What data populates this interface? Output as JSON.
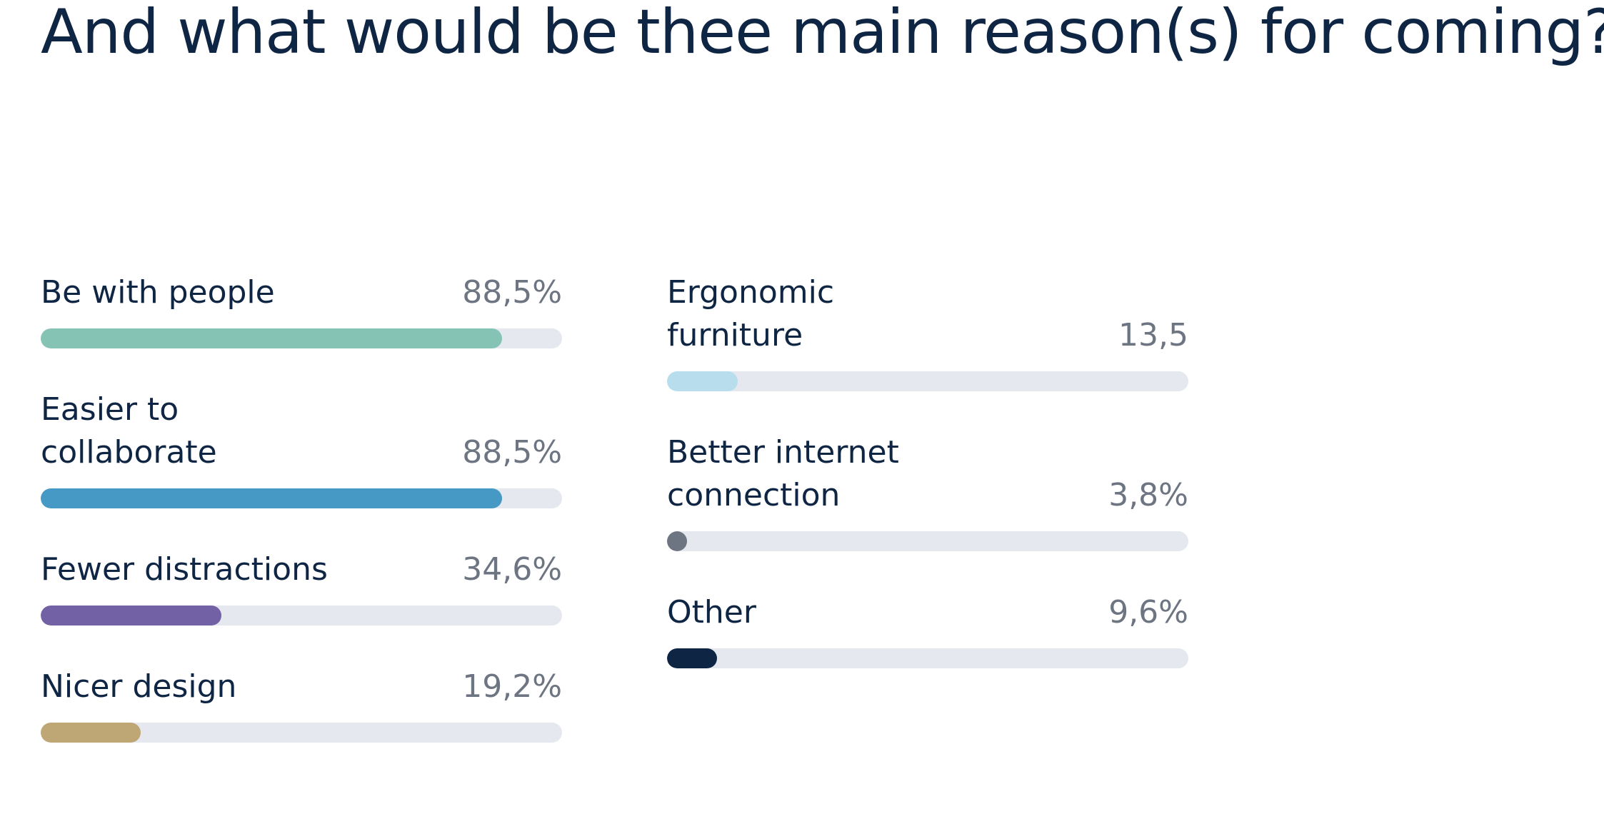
{
  "chart_data": {
    "type": "bar",
    "title": "And what would be thee main reason(s) for coming?",
    "xlabel": "",
    "ylabel": "",
    "ylim": [
      0,
      100
    ],
    "grid": false,
    "orientation": "horizontal",
    "max_value": 100,
    "items": [
      {
        "label": "Be with people",
        "value": 88.5,
        "value_label": "88,5%",
        "color": "#85c4b4",
        "column": "left"
      },
      {
        "label": "Easier to collaborate",
        "value": 88.5,
        "value_label": "88,5%",
        "color": "#4599c4",
        "column": "left"
      },
      {
        "label": "Fewer distractions",
        "value": 34.6,
        "value_label": "34,6%",
        "color": "#7361a6",
        "column": "left"
      },
      {
        "label": "Nicer design",
        "value": 19.2,
        "value_label": "19,2%",
        "color": "#bfa775",
        "column": "left"
      },
      {
        "label": "Ergonomic furniture",
        "value": 13.5,
        "value_label": "13,5",
        "color": "#b8deee",
        "column": "right"
      },
      {
        "label": "Better internet connection",
        "value": 3.8,
        "value_label": "3,8%",
        "color": "#6e7582",
        "column": "right"
      },
      {
        "label": "Other",
        "value": 9.6,
        "value_label": "9,6%",
        "color": "#0f2544",
        "column": "right"
      }
    ]
  },
  "colors": {
    "text": "#0f2544",
    "value_text": "#6e7582",
    "track": "#e6e8ef",
    "background": "#ffffff"
  }
}
